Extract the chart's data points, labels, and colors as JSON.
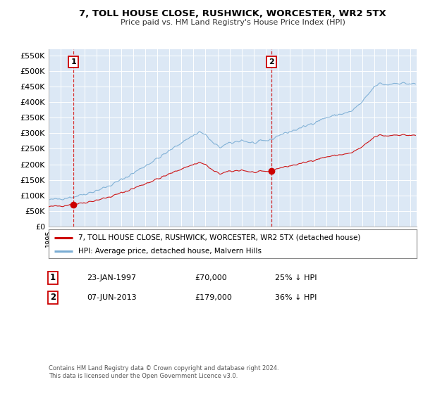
{
  "title": "7, TOLL HOUSE CLOSE, RUSHWICK, WORCESTER, WR2 5TX",
  "subtitle": "Price paid vs. HM Land Registry's House Price Index (HPI)",
  "ylabel_ticks": [
    "£0",
    "£50K",
    "£100K",
    "£150K",
    "£200K",
    "£250K",
    "£300K",
    "£350K",
    "£400K",
    "£450K",
    "£500K",
    "£550K"
  ],
  "ytick_vals": [
    0,
    50000,
    100000,
    150000,
    200000,
    250000,
    300000,
    350000,
    400000,
    450000,
    500000,
    550000
  ],
  "xlim_start": 1995.0,
  "xlim_end": 2025.5,
  "ylim": [
    0,
    570000
  ],
  "legend_line1": "7, TOLL HOUSE CLOSE, RUSHWICK, WORCESTER, WR2 5TX (detached house)",
  "legend_line2": "HPI: Average price, detached house, Malvern Hills",
  "sale1_date": 1997.07,
  "sale1_price": 70000,
  "sale1_label": "1",
  "sale2_date": 2013.44,
  "sale2_price": 179000,
  "sale2_label": "2",
  "table_rows": [
    [
      "1",
      "23-JAN-1997",
      "£70,000",
      "25% ↓ HPI"
    ],
    [
      "2",
      "07-JUN-2013",
      "£179,000",
      "36% ↓ HPI"
    ]
  ],
  "footnote": "Contains HM Land Registry data © Crown copyright and database right 2024.\nThis data is licensed under the Open Government Licence v3.0.",
  "hpi_color": "#7aadd4",
  "price_color": "#cc0000",
  "bg_color": "#dce8f5",
  "grid_color": "#ffffff"
}
